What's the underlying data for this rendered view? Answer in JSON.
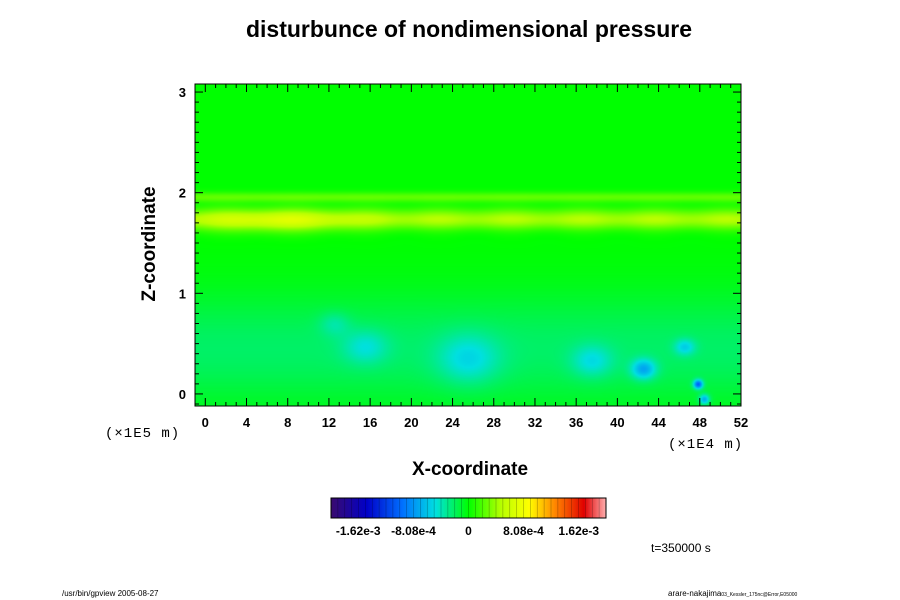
{
  "figure": {
    "title": "disturbunce of nondimensional pressure",
    "xlabel": "X-coordinate",
    "ylabel": "Z-coordinate",
    "x_unit": "(×1E4 m)",
    "y_unit": "(×1E5 m)",
    "time_label": "t=350000 s",
    "footer_left": "/usr/bin/gpview 2005-08-27",
    "footer_right_main": "arare-nakajima",
    "footer_right_small": "03_Kessler_175nc@Error,E05000"
  },
  "chart_data": {
    "type": "heatmap",
    "title": "disturbunce of nondimensional pressure",
    "xlabel": "X-coordinate",
    "ylabel": "Z-coordinate",
    "xlim": [
      -1,
      52
    ],
    "ylim": [
      -0.12,
      3.08
    ],
    "x_ticks": [
      0,
      4,
      8,
      12,
      16,
      20,
      24,
      28,
      32,
      36,
      40,
      44,
      48,
      52
    ],
    "y_ticks": [
      0,
      1,
      2,
      3
    ],
    "grid": false,
    "colorbar": {
      "range": [
        -0.00202,
        0.00202
      ],
      "tick_values": [
        -0.00162,
        -0.000808,
        0,
        0.000808,
        0.00162
      ],
      "tick_labels": [
        "-1.62e-3",
        "-8.08e-4",
        "0",
        "8.08e-4",
        "1.62e-3"
      ]
    },
    "field": {
      "background": 0,
      "bands": [
        {
          "z": 1.74,
          "width": 0.1,
          "value": 0.00045
        },
        {
          "z": 1.96,
          "width": 0.05,
          "value": 0.00025
        },
        {
          "z": 0.45,
          "width": 0.55,
          "value": -0.00022
        }
      ],
      "features": [
        {
          "x": 7,
          "z": 1.72,
          "rx": 7,
          "rz": 0.12,
          "value": 0.00025
        },
        {
          "x": 12.5,
          "z": 0.7,
          "rx": 1.5,
          "rz": 0.12,
          "value": -0.00018
        },
        {
          "x": 15.5,
          "z": 0.47,
          "rx": 2.2,
          "rz": 0.17,
          "value": -0.00026
        },
        {
          "x": 25.5,
          "z": 0.35,
          "rx": 3.0,
          "rz": 0.25,
          "value": -0.00032
        },
        {
          "x": 37.5,
          "z": 0.33,
          "rx": 2.0,
          "rz": 0.16,
          "value": -0.0003
        },
        {
          "x": 42.5,
          "z": 0.25,
          "rx": 1.2,
          "rz": 0.1,
          "value": -0.00055
        },
        {
          "x": 46.5,
          "z": 0.47,
          "rx": 1.0,
          "rz": 0.08,
          "value": -0.00035
        },
        {
          "x": 47.8,
          "z": 0.1,
          "rx": 0.45,
          "rz": 0.045,
          "value": -0.0009
        },
        {
          "x": 48.4,
          "z": -0.05,
          "rx": 0.5,
          "rz": 0.05,
          "value": -0.0006
        }
      ]
    }
  }
}
